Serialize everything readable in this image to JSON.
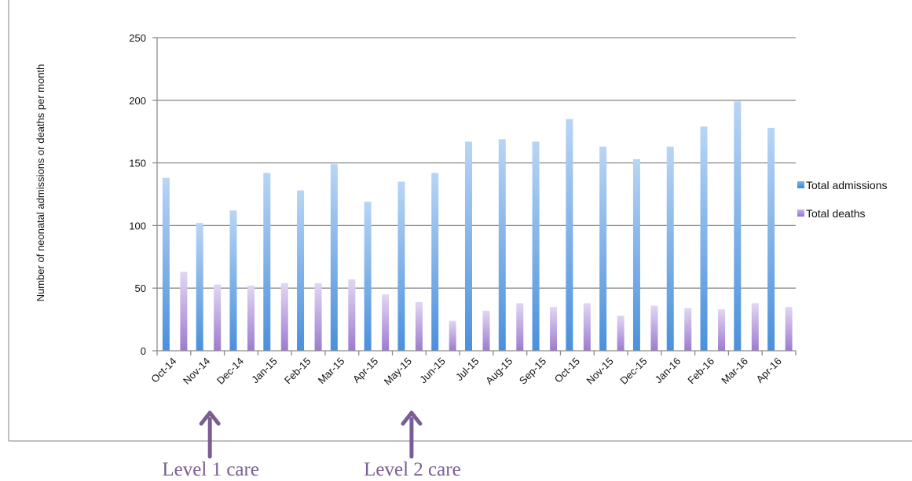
{
  "chart_data": {
    "type": "bar",
    "title": "",
    "xlabel": "",
    "ylabel": "Number of neonatal admissions or deaths per month",
    "ylim": [
      0,
      250
    ],
    "yticks": [
      0,
      50,
      100,
      150,
      200,
      250
    ],
    "grid": true,
    "legend_position": "right",
    "categories": [
      "Oct-14",
      "Nov-14",
      "Dec-14",
      "Jan-15",
      "Feb-15",
      "Mar-15",
      "Apr-15",
      "May-15",
      "Jun-15",
      "Jul-15",
      "Aug-15",
      "Sep-15",
      "Oct-15",
      "Nov-15",
      "Dec-15",
      "Jan-16",
      "Feb-16",
      "Mar-16",
      "Apr-16"
    ],
    "series": [
      {
        "name": "Total admissions",
        "color": "#5b9be0",
        "values": [
          138,
          102,
          112,
          142,
          128,
          149,
          119,
          135,
          142,
          167,
          169,
          167,
          185,
          163,
          153,
          163,
          179,
          199,
          178
        ]
      },
      {
        "name": "Total deaths",
        "color": "#a98bd6",
        "values": [
          63,
          53,
          52,
          54,
          54,
          57,
          45,
          39,
          24,
          32,
          38,
          35,
          38,
          28,
          36,
          34,
          33,
          38,
          35
        ]
      }
    ],
    "annotations": [
      {
        "text": "Level 1 care",
        "category": "Nov-14"
      },
      {
        "text": "Level 2 care",
        "category": "May-15"
      }
    ]
  }
}
